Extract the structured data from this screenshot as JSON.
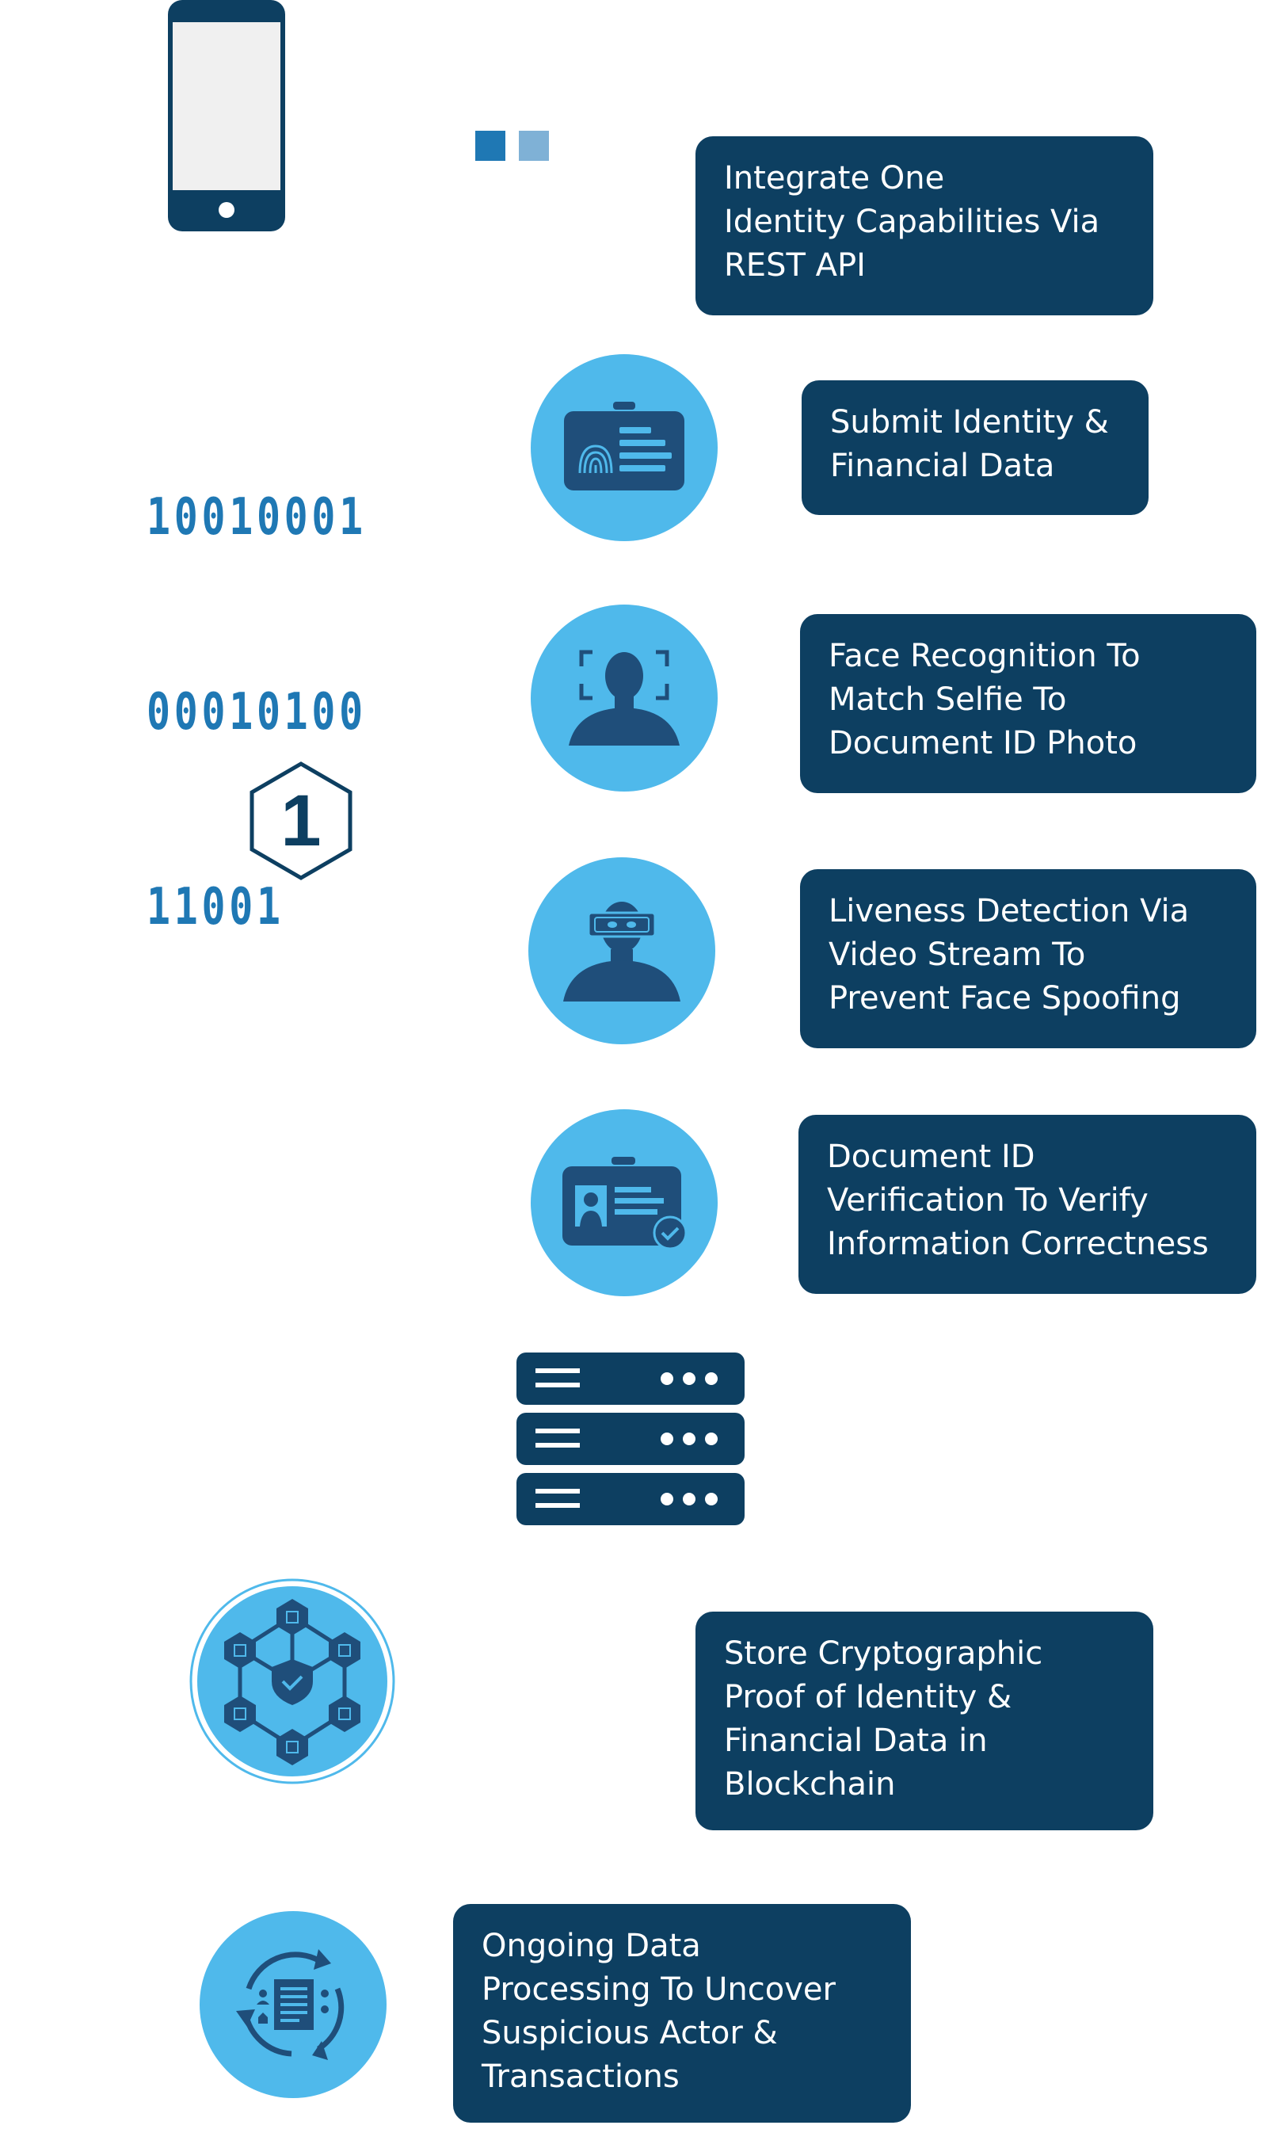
{
  "steps": [
    {
      "lines": [
        "Integrate One",
        "Identity Capabilities Via",
        "REST API"
      ],
      "icon": "smartphone-icon"
    },
    {
      "lines": [
        "Submit Identity &",
        "Financial Data"
      ],
      "icon": "fingerprint-id-card-icon"
    },
    {
      "lines": [
        "Face Recognition To",
        "Match Selfie To",
        "Document ID Photo"
      ],
      "icon": "face-scan-icon"
    },
    {
      "lines": [
        "Liveness Detection Via",
        "Video Stream To",
        "Prevent Face Spoofing"
      ],
      "icon": "liveness-scan-icon"
    },
    {
      "lines": [
        "Document ID",
        "Verification To Verify",
        "Information Correctness"
      ],
      "icon": "verified-id-card-icon"
    },
    {
      "lines": [
        "Store Cryptographic",
        "Proof of Identity &",
        "Financial Data in",
        "Blockchain"
      ],
      "icon": "blockchain-icon"
    },
    {
      "lines": [
        "Ongoing Data",
        "Processing To Uncover",
        "Suspicious Actor &",
        "Transactions"
      ],
      "icon": "data-processing-cycle-icon"
    }
  ],
  "binary_lines": [
    "10010001",
    "00010100",
    "11001"
  ],
  "badge_number": "1",
  "colors": {
    "navy": "#0d3f61",
    "light_blue": "#4fb9eb",
    "mid_blue": "#1f78b4",
    "pale_blue": "#7fb1d6",
    "icon_navy": "#1f4e7a"
  }
}
